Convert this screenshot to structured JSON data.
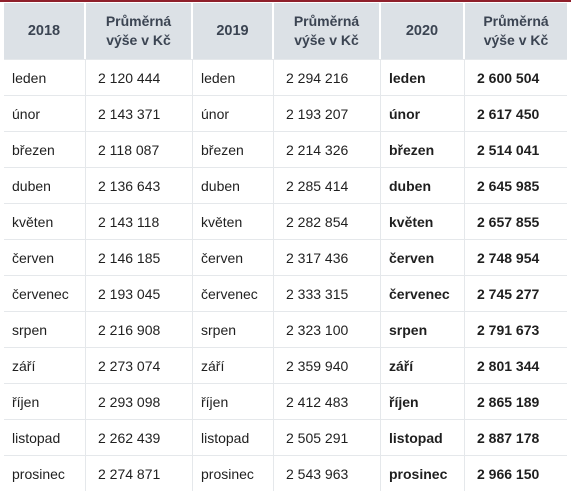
{
  "headers": {
    "y2018": "2018",
    "avg_line1": "Průměrná",
    "avg_line2": "výše v Kč",
    "y2019": "2019",
    "y2020": "2020"
  },
  "rows": [
    {
      "m2018": "leden",
      "v2018": "2 120 444",
      "m2019": "leden",
      "v2019": "2 294 216",
      "m2020": "leden",
      "v2020": "2 600 504"
    },
    {
      "m2018": "únor",
      "v2018": "2 143 371",
      "m2019": "únor",
      "v2019": "2 193 207",
      "m2020": "únor",
      "v2020": "2 617 450"
    },
    {
      "m2018": "březen",
      "v2018": "2 118 087",
      "m2019": "březen",
      "v2019": "2 214 326",
      "m2020": "březen",
      "v2020": "2 514 041"
    },
    {
      "m2018": "duben",
      "v2018": "2 136 643",
      "m2019": "duben",
      "v2019": "2 285 414",
      "m2020": "duben",
      "v2020": "2 645 985"
    },
    {
      "m2018": "květen",
      "v2018": "2 143 118",
      "m2019": "květen",
      "v2019": "2 282 854",
      "m2020": "květen",
      "v2020": "2 657 855"
    },
    {
      "m2018": "červen",
      "v2018": "2 146 185",
      "m2019": "červen",
      "v2019": "2 317 436",
      "m2020": "červen",
      "v2020": "2 748 954"
    },
    {
      "m2018": "červenec",
      "v2018": "2 193 045",
      "m2019": "červenec",
      "v2019": "2 333 315",
      "m2020": "červenec",
      "v2020": "2 745 277"
    },
    {
      "m2018": "srpen",
      "v2018": "2 216 908",
      "m2019": "srpen",
      "v2019": "2 323 100",
      "m2020": "srpen",
      "v2020": "2 791 673"
    },
    {
      "m2018": "září",
      "v2018": "2 273 074",
      "m2019": "září",
      "v2019": "2 359 940",
      "m2020": "září",
      "v2020": "2 801 344"
    },
    {
      "m2018": "říjen",
      "v2018": "2 293 098",
      "m2019": "říjen",
      "v2019": "2 412 483",
      "m2020": "říjen",
      "v2020": "2 865 189"
    },
    {
      "m2018": "listopad",
      "v2018": "2 262 439",
      "m2019": "listopad",
      "v2019": "2 505 291",
      "m2020": "listopad",
      "v2020": "2 887 178"
    },
    {
      "m2018": "prosinec",
      "v2018": "2 274 871",
      "m2019": "prosinec",
      "v2019": "2 543 963",
      "m2020": "prosinec",
      "v2020": "2 966 150"
    }
  ]
}
